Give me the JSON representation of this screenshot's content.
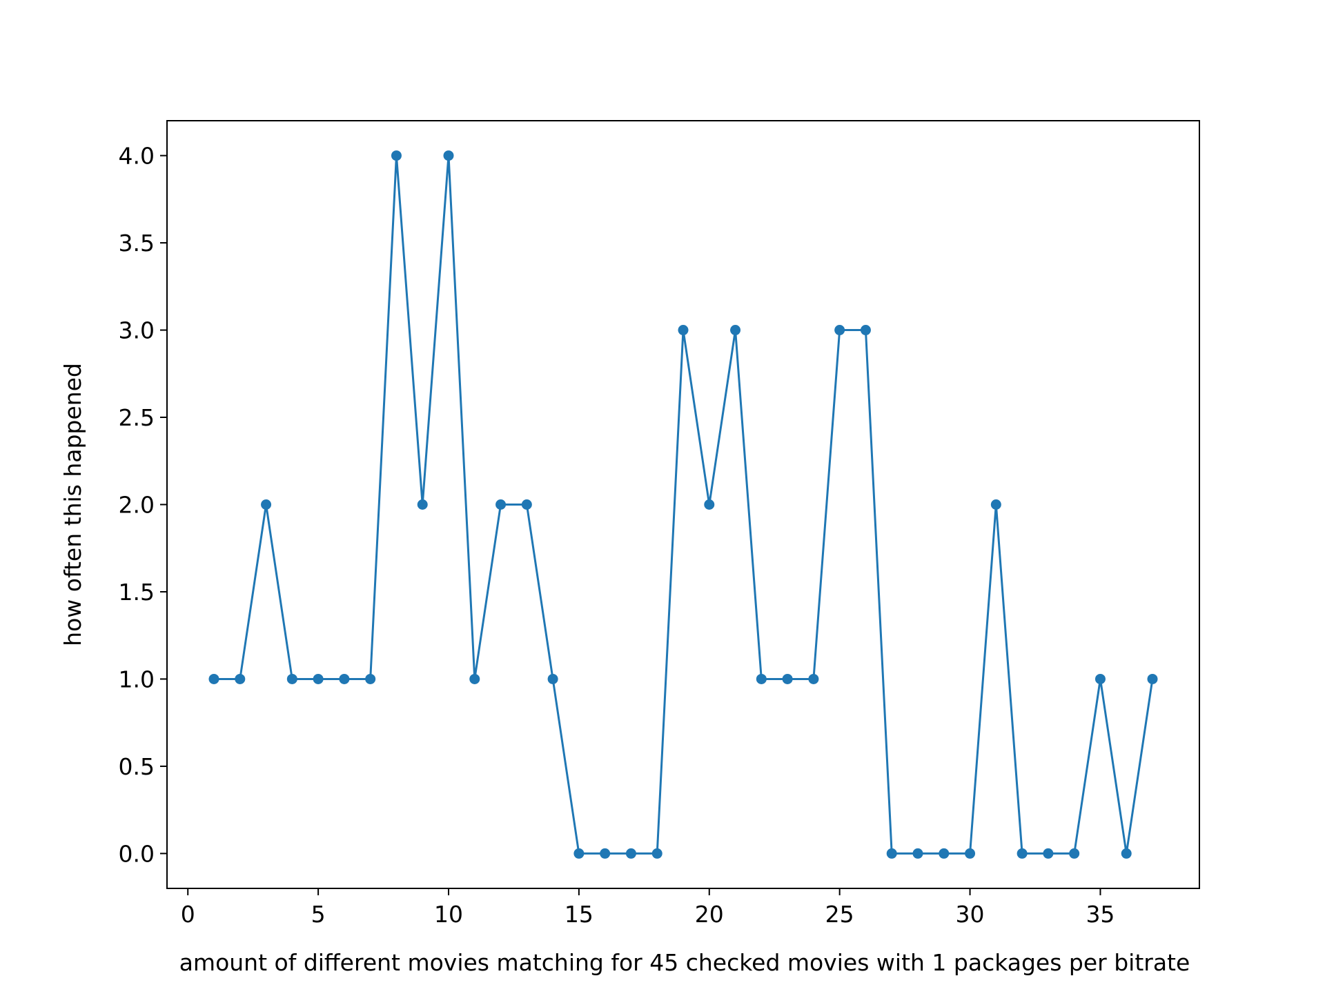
{
  "chart_data": {
    "type": "line",
    "title": "",
    "xlabel": "amount of different movies matching for 45 checked movies with 1 packages per bitrate",
    "ylabel": "how often this happened",
    "xlim": [
      -0.8,
      38.8
    ],
    "ylim": [
      -0.2,
      4.2
    ],
    "xticks": [
      0,
      5,
      10,
      15,
      20,
      25,
      30,
      35
    ],
    "xtick_labels": [
      "0",
      "5",
      "10",
      "15",
      "20",
      "25",
      "30",
      "35"
    ],
    "yticks": [
      0.0,
      0.5,
      1.0,
      1.5,
      2.0,
      2.5,
      3.0,
      3.5,
      4.0
    ],
    "ytick_labels": [
      "0.0",
      "0.5",
      "1.0",
      "1.5",
      "2.0",
      "2.5",
      "3.0",
      "3.5",
      "4.0"
    ],
    "grid": false,
    "legend": "none",
    "color": "#1f77b4",
    "marker": "dot",
    "x": [
      1,
      2,
      3,
      4,
      5,
      6,
      7,
      8,
      9,
      10,
      11,
      12,
      13,
      14,
      15,
      16,
      17,
      18,
      19,
      20,
      21,
      22,
      23,
      24,
      25,
      26,
      27,
      28,
      29,
      30,
      31,
      32,
      33,
      34,
      35,
      36,
      37
    ],
    "y": [
      1,
      1,
      2,
      1,
      1,
      1,
      1,
      4,
      2,
      4,
      1,
      2,
      2,
      1,
      0,
      0,
      0,
      0,
      3,
      2,
      3,
      1,
      1,
      1,
      3,
      3,
      0,
      0,
      0,
      0,
      2,
      0,
      0,
      0,
      1,
      0,
      1
    ]
  }
}
